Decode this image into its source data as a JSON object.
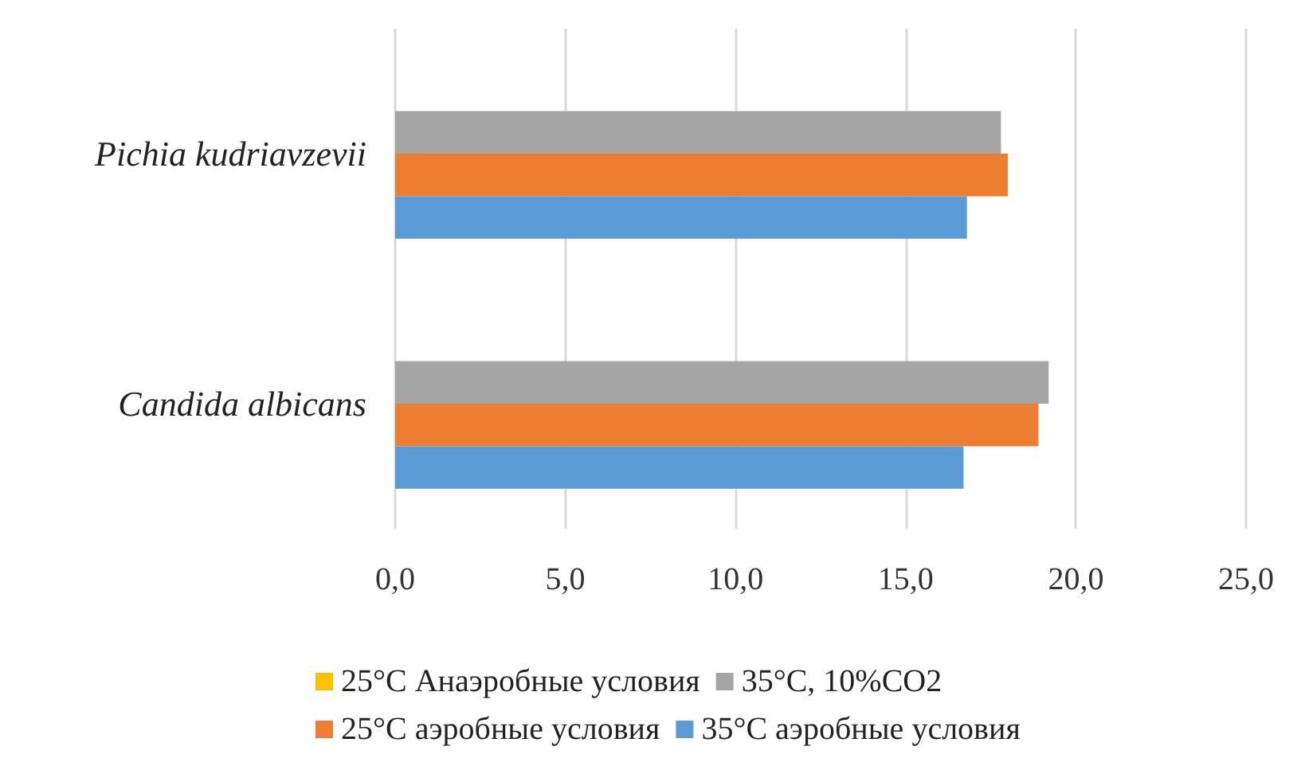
{
  "chart_data": {
    "type": "bar",
    "orientation": "horizontal",
    "categories": [
      "Pichia kudriavzevii",
      "Candida albicans"
    ],
    "series": [
      {
        "name": "25°C Анаэробные условия",
        "color": "#ffc000",
        "values": [
          0,
          0
        ]
      },
      {
        "name": "35°C, 10%CO2",
        "color": "#a5a5a5",
        "values": [
          17.8,
          19.2
        ]
      },
      {
        "name": "25°C аэробные условия",
        "color": "#ed7d31",
        "values": [
          18.0,
          18.9
        ]
      },
      {
        "name": "35°C аэробные условия",
        "color": "#5b9bd5",
        "values": [
          16.8,
          16.7
        ]
      }
    ],
    "xlim": [
      0,
      25
    ],
    "xticks": [
      {
        "value": 0,
        "label": "0,0"
      },
      {
        "value": 5,
        "label": "5,0"
      },
      {
        "value": 10,
        "label": "10,0"
      },
      {
        "value": 15,
        "label": "15,0"
      },
      {
        "value": 20,
        "label": "20,0"
      },
      {
        "value": 25,
        "label": "25,0"
      }
    ],
    "grid": "x",
    "legend": "bottom"
  }
}
